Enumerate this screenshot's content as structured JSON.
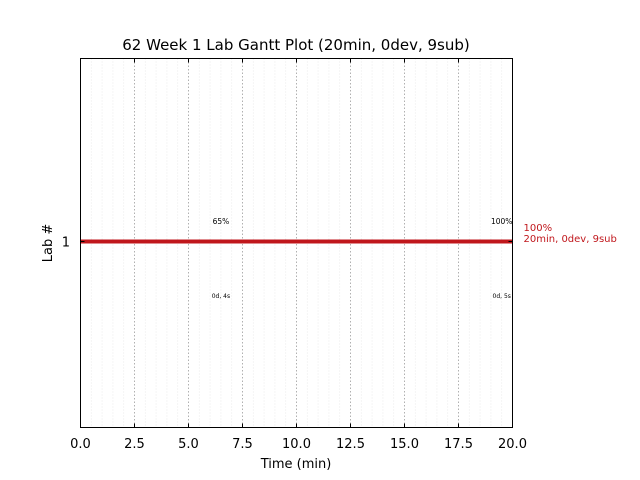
{
  "chart_data": {
    "type": "gantt",
    "title": "62 Week 1 Lab Gantt Plot (20min, 0dev, 9sub)",
    "xlabel": "Time (min)",
    "ylabel": "Lab #",
    "xlim": [
      0,
      20
    ],
    "x_ticks": [
      "0.0",
      "2.5",
      "5.0",
      "7.5",
      "10.0",
      "12.5",
      "15.0",
      "17.5",
      "20.0"
    ],
    "x_tick_values": [
      0,
      2.5,
      5,
      7.5,
      10,
      12.5,
      15,
      17.5,
      20
    ],
    "y_ticks": [
      "1"
    ],
    "grid": "vertical dotted, major and minor",
    "bar_color": "#c0171c",
    "bars": [
      {
        "lab": "1",
        "start": 0,
        "end": 20,
        "end_label_percent": "100%",
        "end_label_detail": "20min, 0dev, 9sub"
      }
    ],
    "annotations": [
      {
        "x": 6.5,
        "position": "above",
        "text": "65%"
      },
      {
        "x": 6.5,
        "position": "below",
        "text": "0d, 4s"
      },
      {
        "x": 19.5,
        "position": "above",
        "text": "100%"
      },
      {
        "x": 19.5,
        "position": "below",
        "text": "0d, 5s"
      }
    ]
  }
}
